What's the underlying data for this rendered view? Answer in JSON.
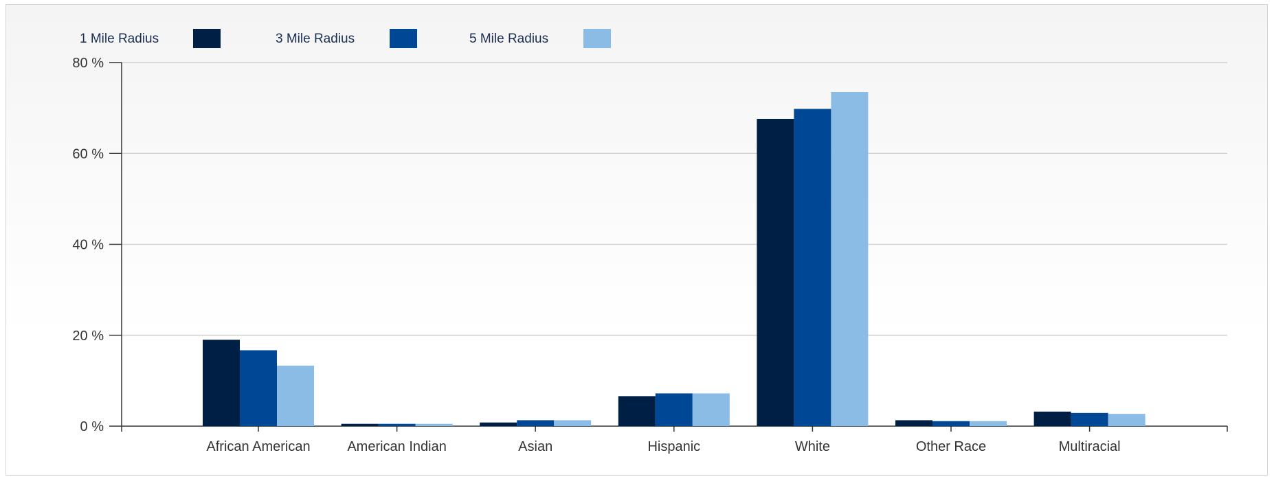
{
  "chart_data": {
    "type": "bar",
    "title": "",
    "xlabel": "",
    "ylabel": "",
    "categories": [
      "African American",
      "American Indian",
      "Asian",
      "Hispanic",
      "White",
      "Other Race",
      "Multiracial"
    ],
    "series": [
      {
        "name": "1 Mile Radius",
        "color": "#001f45",
        "values": [
          19.0,
          0.5,
          0.8,
          6.6,
          67.6,
          1.3,
          3.2
        ]
      },
      {
        "name": "3 Mile Radius",
        "color": "#004896",
        "values": [
          16.7,
          0.5,
          1.3,
          7.2,
          69.8,
          1.1,
          2.9
        ]
      },
      {
        "name": "5 Mile Radius",
        "color": "#8abce6",
        "values": [
          13.3,
          0.5,
          1.3,
          7.2,
          73.5,
          1.1,
          2.7
        ]
      }
    ],
    "y_ticks": [
      "0 %",
      "20 %",
      "40 %",
      "60 %",
      "80 %"
    ],
    "y_tick_values": [
      0,
      20,
      40,
      60,
      80
    ],
    "ylim": [
      0,
      80
    ],
    "grid": true,
    "legend_position": "top-left"
  }
}
